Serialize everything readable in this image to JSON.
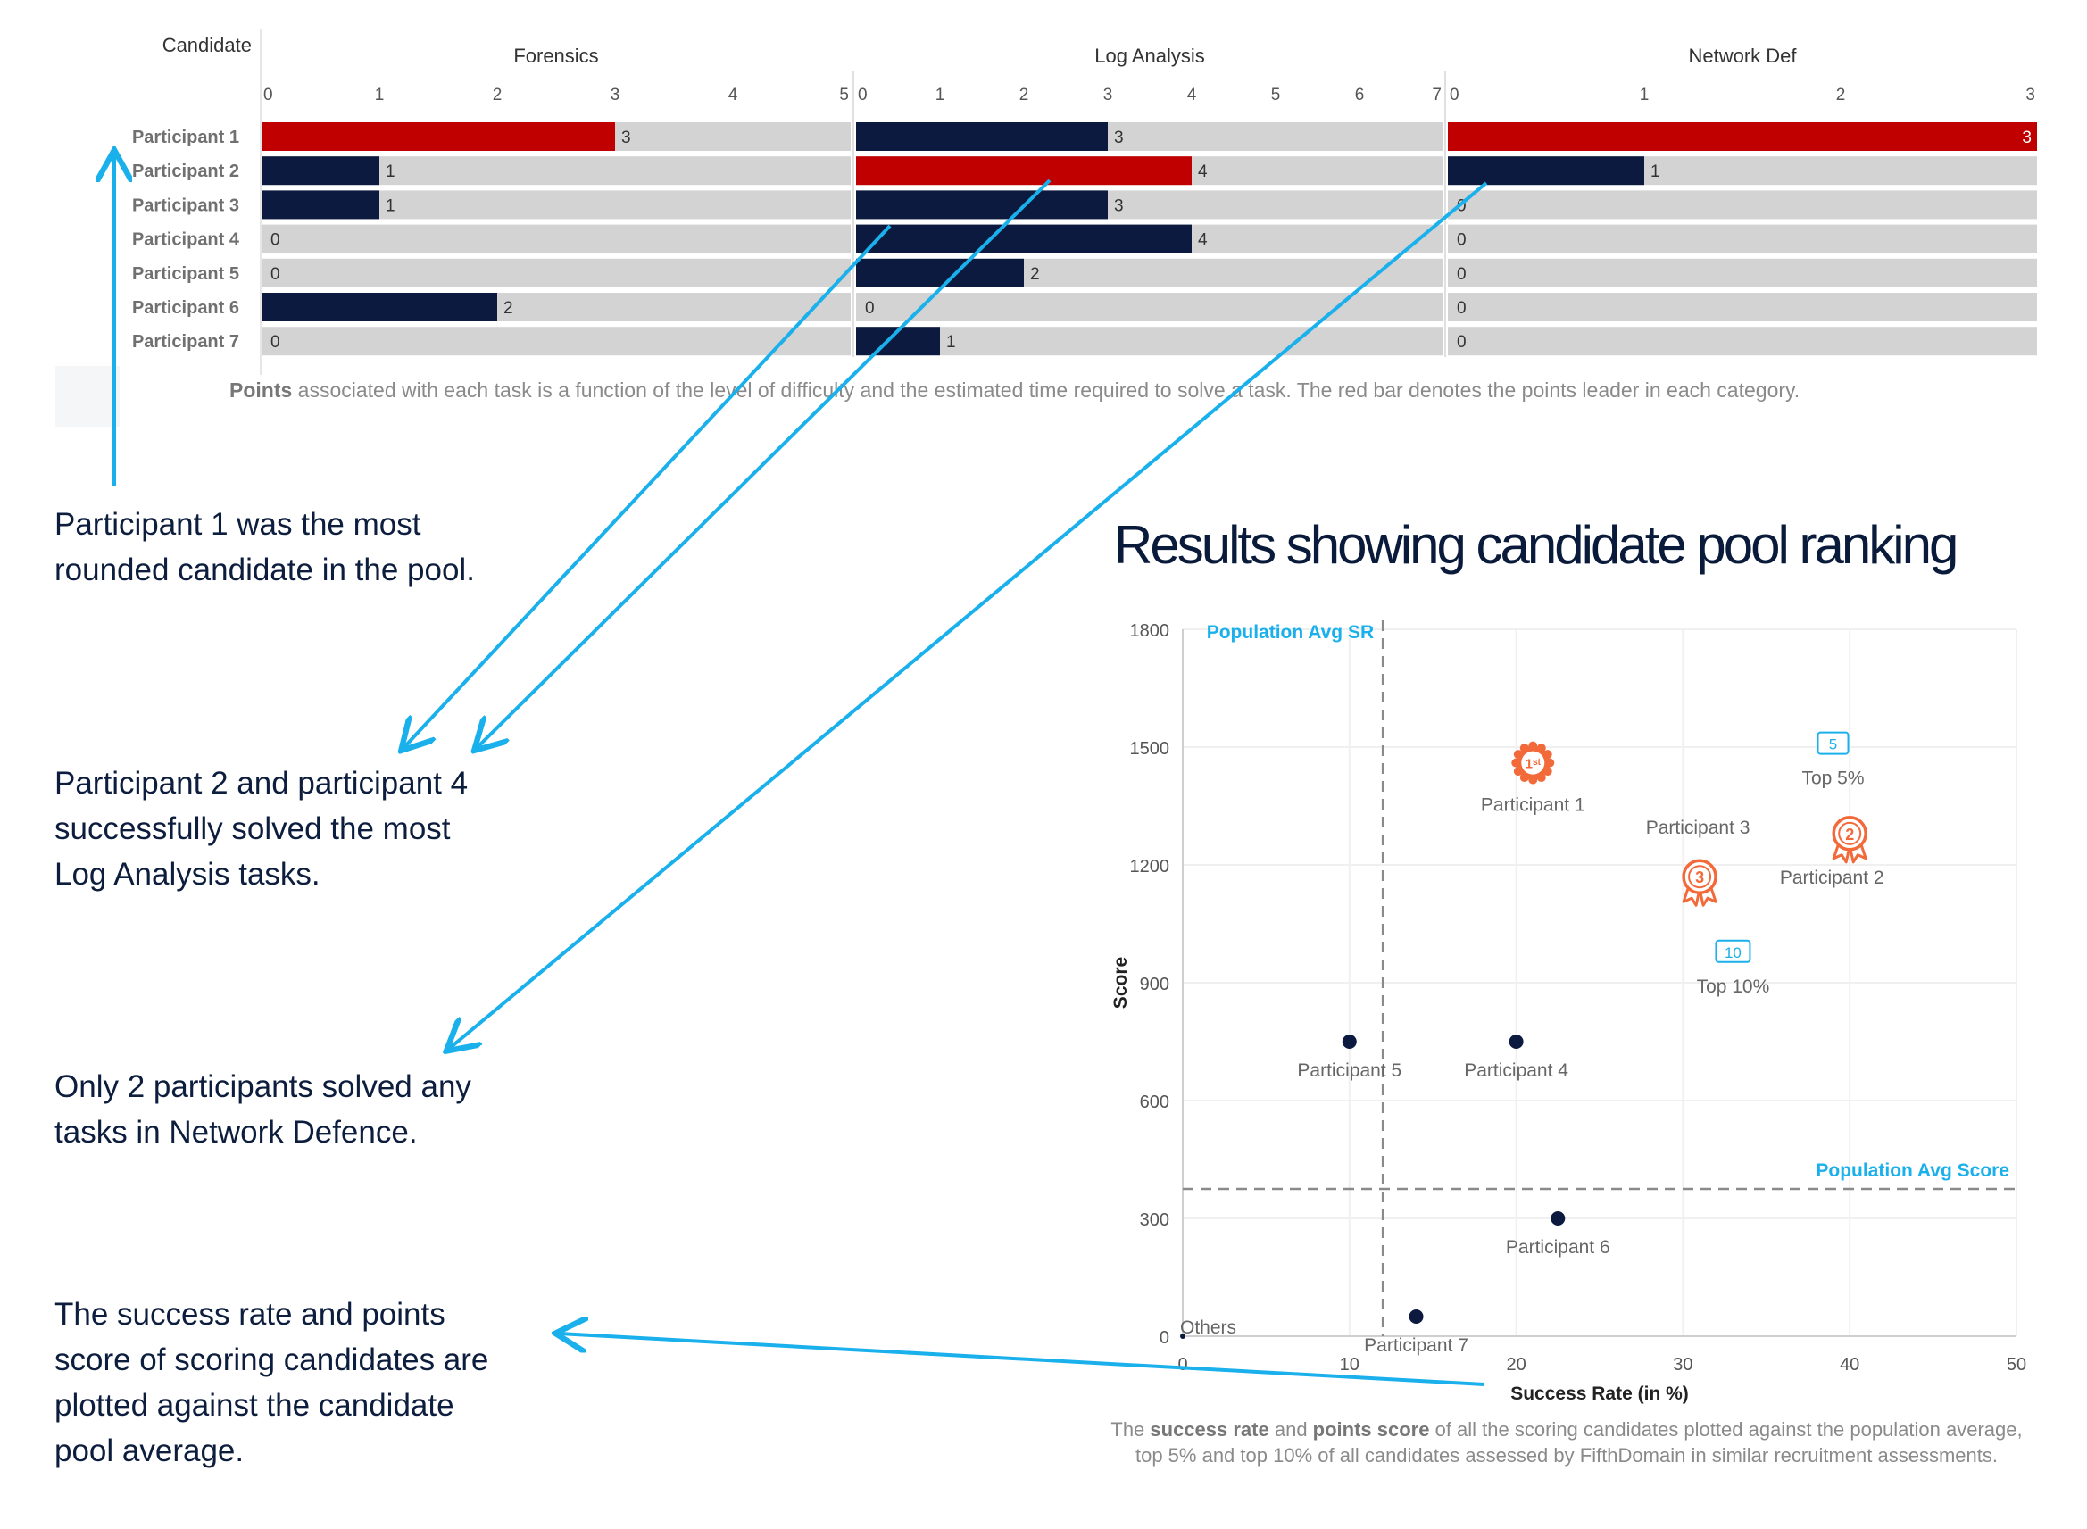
{
  "bar_panel": {
    "candidate_header": "Candidate",
    "caption": {
      "bold": "Points",
      "rest": " associated with each task is a function of the level of difficulty and the estimated time required to solve a task. The red bar denotes the points leader in each category."
    }
  },
  "notes": {
    "note1": [
      "Participant 1 was the most",
      "rounded candidate in the pool."
    ],
    "note2": [
      "Participant 2 and participant 4",
      "successfully solved the most",
      "Log Analysis tasks."
    ],
    "note3": [
      "Only 2 participants solved any",
      "tasks in Network Defence."
    ],
    "note4": [
      "The success rate and points",
      "score of scoring candidates are",
      "plotted against the candidate",
      "pool average."
    ]
  },
  "results_title": "Results showing candidate pool ranking",
  "scatter_caption": {
    "line1_pre": "The ",
    "line1_b1": "success rate",
    "line1_mid": " and ",
    "line1_b2": "points score",
    "line1_post": " of all the scoring candidates plotted against the population average,",
    "line2": "top 5% and top 10% of all candidates assessed by FifthDomain in similar recruitment assessments."
  },
  "colors": {
    "navy": "#0c1a3f",
    "red": "#c00000",
    "track": "#d3d3d3",
    "arrow": "#1ab0ec",
    "medal": "#f26a3a",
    "ref_blue": "#1ab0ec"
  },
  "chart_data": [
    {
      "type": "bar",
      "orientation": "horizontal",
      "title": "",
      "categories": [
        "Participant 1",
        "Participant 2",
        "Participant 3",
        "Participant 4",
        "Participant 5",
        "Participant 6",
        "Participant 7"
      ],
      "panels": [
        {
          "name": "Forensics",
          "xlim": [
            0,
            5
          ],
          "ticks": [
            0,
            1,
            2,
            3,
            4,
            5
          ],
          "values": [
            3,
            1,
            1,
            0,
            0,
            2,
            0
          ],
          "leader_index": 0
        },
        {
          "name": "Log Analysis",
          "xlim": [
            0,
            7
          ],
          "ticks": [
            0,
            1,
            2,
            3,
            4,
            5,
            6,
            7
          ],
          "values": [
            3,
            4,
            3,
            4,
            2,
            0,
            1
          ],
          "leader_index": 1
        },
        {
          "name": "Network Def",
          "xlim": [
            0,
            3
          ],
          "ticks": [
            0,
            1,
            2,
            3
          ],
          "values": [
            3,
            1,
            0,
            0,
            0,
            0,
            0
          ],
          "leader_index": 0
        }
      ],
      "ylabel": "Candidate",
      "grid": false
    },
    {
      "type": "scatter",
      "xlabel": "Success Rate (in %)",
      "ylabel": "Score",
      "xlim": [
        0,
        50
      ],
      "ylim": [
        0,
        1800
      ],
      "xticks": [
        0,
        10,
        20,
        30,
        40,
        50
      ],
      "yticks": [
        0,
        300,
        600,
        900,
        1200,
        1500,
        1800
      ],
      "points": [
        {
          "name": "Participant 1",
          "x": 21,
          "y": 1460,
          "marker": "medal-1st"
        },
        {
          "name": "Participant 2",
          "x": 40,
          "y": 1280,
          "marker": "medal-2"
        },
        {
          "name": "Participant 3",
          "x": 31,
          "y": 1170,
          "marker": "medal-3"
        },
        {
          "name": "Participant 4",
          "x": 20,
          "y": 750,
          "marker": "dot"
        },
        {
          "name": "Participant 5",
          "x": 10,
          "y": 750,
          "marker": "dot"
        },
        {
          "name": "Participant 6",
          "x": 22.5,
          "y": 300,
          "marker": "dot"
        },
        {
          "name": "Participant 7",
          "x": 14,
          "y": 50,
          "marker": "dot"
        },
        {
          "name": "Others",
          "x": 0,
          "y": 0,
          "marker": "dot-small"
        }
      ],
      "benchmarks": [
        {
          "name": "Top 5%",
          "badge": "5",
          "x": 39,
          "y": 1510
        },
        {
          "name": "Top 10%",
          "badge": "10",
          "x": 33,
          "y": 980
        }
      ],
      "reference_lines": {
        "vertical": {
          "label": "Population Avg SR",
          "x": 12
        },
        "horizontal": {
          "label": "Population Avg Score",
          "y": 375
        }
      },
      "grid": true
    }
  ]
}
